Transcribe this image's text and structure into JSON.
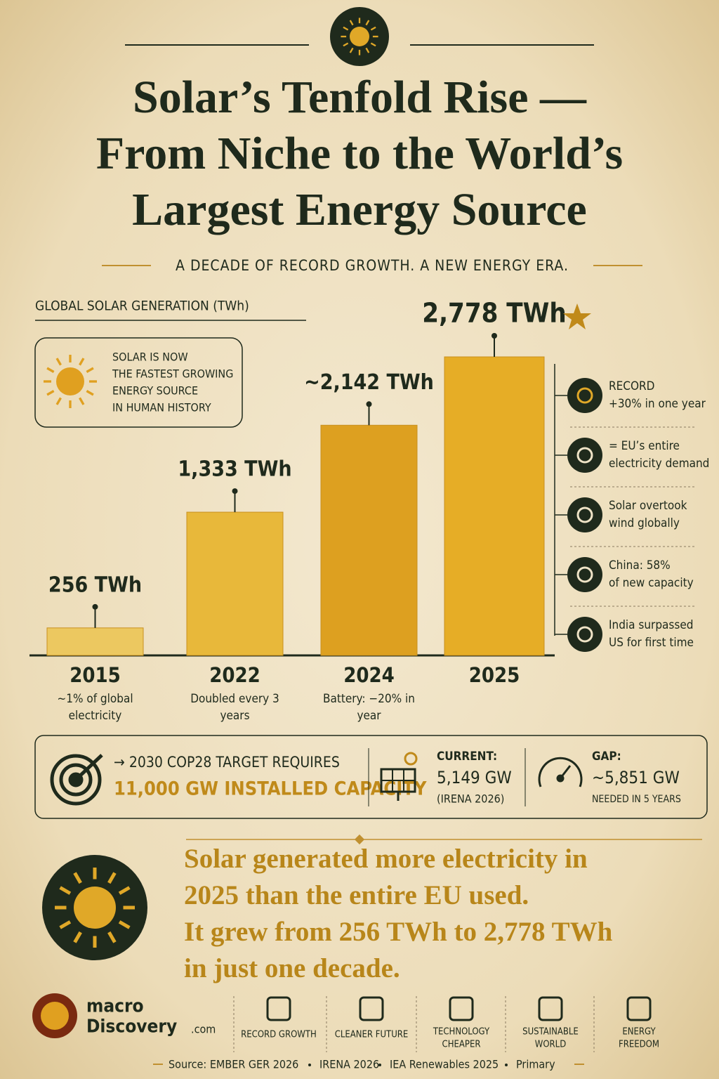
{
  "title_lines": [
    "Solar’s Tenfold Rise —",
    "From Niche to the World’s",
    "Largest Energy Source"
  ],
  "subtitle": "A DECADE OF RECORD GROWTH. A NEW ENERGY ERA.",
  "callout": [
    "SOLAR IS NOW",
    "THE FASTEST GROWING",
    "ENERGY SOURCE",
    "IN HUMAN HISTORY"
  ],
  "chart_data": {
    "type": "bar",
    "title": "GLOBAL SOLAR GENERATION (TWh)",
    "categories": [
      "2015",
      "2022",
      "2024",
      "2025"
    ],
    "values": [
      256,
      1333,
      2142,
      2778
    ],
    "value_labels": [
      "256 TWh",
      "1,333 TWh",
      "~2,142 TWh",
      "2,778 TWh"
    ],
    "category_notes": [
      "~1% of global electricity",
      "Doubled every 3 years",
      "Battery: −20% in year",
      null
    ],
    "colors": [
      "#ecc860",
      "#e8b83a",
      "#dda020",
      "#e6ad26"
    ]
  },
  "facts": [
    [
      "RECORD",
      "+30% in one year"
    ],
    [
      "= EU’s entire",
      "electricity demand"
    ],
    [
      "Solar overtook",
      "wind globally"
    ],
    [
      "China: 58%",
      "of new capacity"
    ],
    [
      "India surpassed",
      "US for first time"
    ]
  ],
  "target": {
    "line1": "→ 2030 COP28 TARGET REQUIRES",
    "line2": "11,000 GW INSTALLED CAPACITY"
  },
  "current": {
    "label": "CURRENT:",
    "value": "5,149 GW",
    "source": "(IRENA 2026)"
  },
  "gap": {
    "label": "GAP:",
    "value": "~5,851 GW",
    "note": "NEEDED IN 5 YEARS"
  },
  "statement": [
    "Solar generated more electricity in",
    "2025 than the entire EU used.",
    "It grew from 256 TWh to 2,778 TWh",
    "in just one decade."
  ],
  "logo": {
    "line1": "macro",
    "line2": "Discovery",
    "suffix": ".com"
  },
  "footer_items": [
    "RECORD GROWTH",
    "CLEANER FUTURE",
    [
      "TECHNOLOGY",
      "CHEAPER"
    ],
    [
      "SUSTAINABLE",
      "WORLD"
    ],
    [
      "ENERGY",
      "FREEDOM"
    ]
  ],
  "sources": [
    "Source: EMBER GER 2026",
    "IRENA 2026",
    "IEA Renewables 2025",
    "Primary"
  ]
}
